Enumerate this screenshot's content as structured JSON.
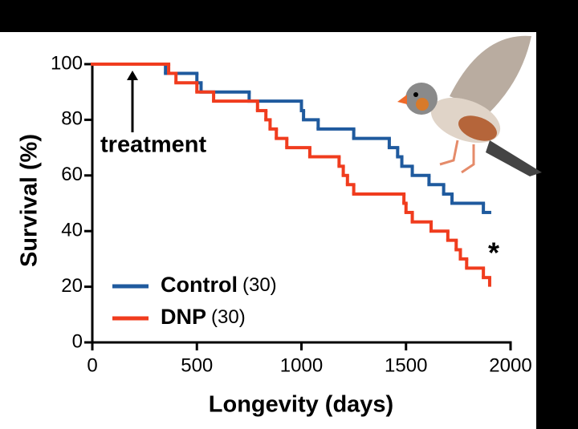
{
  "chart_data": {
    "type": "step",
    "xlabel": "Longevity (days)",
    "ylabel": "Survival (%)",
    "xlim": [
      0,
      2000
    ],
    "xticks": [
      0,
      500,
      1000,
      1500,
      2000
    ],
    "ylim": [
      0,
      100
    ],
    "yticks": [
      0,
      20,
      40,
      60,
      80,
      100
    ],
    "annotations": {
      "treatment": "treatment",
      "significance": "*"
    },
    "series": [
      {
        "name": "Control",
        "count_label": "(30)",
        "color": "#1f5a9e",
        "x": [
          0,
          350,
          500,
          520,
          750,
          1000,
          1010,
          1080,
          1250,
          1420,
          1460,
          1480,
          1530,
          1610,
          1680,
          1720,
          1870,
          1900
        ],
        "values": [
          100,
          96.7,
          93.3,
          90,
          86.7,
          83.3,
          80,
          76.7,
          73.3,
          70,
          66.7,
          63.3,
          60,
          56.7,
          53.3,
          50,
          46.7,
          46.7
        ]
      },
      {
        "name": "DNP",
        "count_label": "(30)",
        "color": "#f03c1e",
        "x": [
          0,
          365,
          400,
          500,
          580,
          790,
          830,
          850,
          880,
          930,
          1040,
          1180,
          1200,
          1220,
          1250,
          1490,
          1500,
          1530,
          1620,
          1700,
          1740,
          1760,
          1790,
          1870,
          1900
        ],
        "values": [
          100,
          96.7,
          93.3,
          90,
          86.7,
          83.3,
          80,
          76.7,
          73.3,
          70,
          66.7,
          63.3,
          60,
          56.7,
          53.3,
          50,
          46.7,
          43.3,
          40,
          36.7,
          33.3,
          30,
          26.7,
          23.3,
          20
        ]
      }
    ]
  }
}
